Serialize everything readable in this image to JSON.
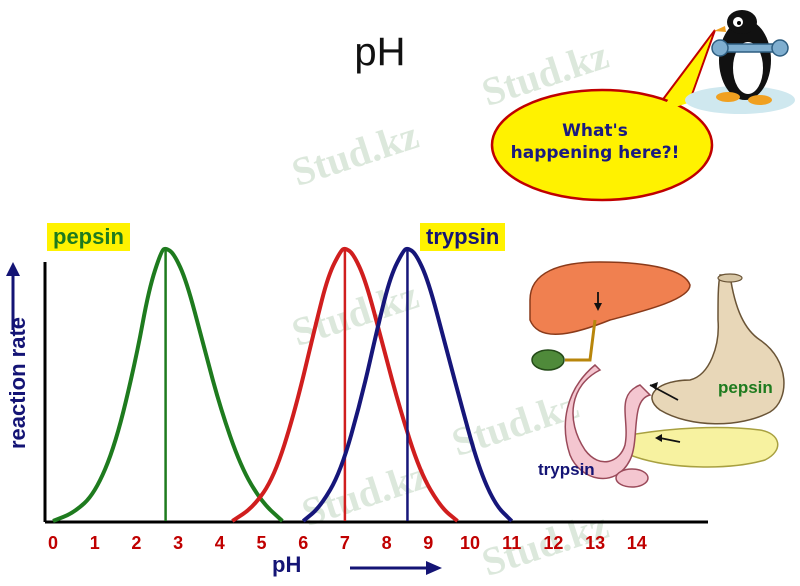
{
  "title": "pH",
  "speech_bubble": {
    "line1": "What's",
    "line2": "happening here?!"
  },
  "colors": {
    "pepsin": "#1e7b1e",
    "middle": "#d01e1e",
    "trypsin": "#16167a",
    "ticks": "#c00000",
    "highlight": "#fff200"
  },
  "watermark": "Stud.kz",
  "icons": [
    "penguin-mascot-icon",
    "wrench-icon",
    "digestive-system-illustration"
  ],
  "diagram": {
    "stomach_label": "pepsin",
    "pancreas_label": "trypsin"
  },
  "chart_data": {
    "type": "line",
    "title": "pH",
    "xlabel": "pH",
    "ylabel": "reaction rate",
    "xlim": [
      0,
      14
    ],
    "x_ticks": [
      "0",
      "1",
      "2",
      "3",
      "4",
      "5",
      "6",
      "7",
      "8",
      "9",
      "10",
      "11",
      "12",
      "13",
      "14"
    ],
    "grid": false,
    "series": [
      {
        "name": "pepsin",
        "peak_x": 2.7,
        "x": [
          0,
          0.5,
          1,
          1.5,
          2,
          2.3,
          2.6,
          2.7,
          2.9,
          3.2,
          3.6,
          4,
          4.5,
          5,
          5.5
        ],
        "y": [
          0,
          0.03,
          0.1,
          0.28,
          0.6,
          0.85,
          0.99,
          1.0,
          0.98,
          0.88,
          0.65,
          0.42,
          0.2,
          0.07,
          0
        ]
      },
      {
        "name": "",
        "peak_x": 7.0,
        "x": [
          4.3,
          4.8,
          5.3,
          5.8,
          6.3,
          6.6,
          6.9,
          7.0,
          7.2,
          7.5,
          7.9,
          8.3,
          8.8,
          9.3,
          9.7
        ],
        "y": [
          0,
          0.05,
          0.16,
          0.4,
          0.72,
          0.9,
          0.99,
          1.0,
          0.98,
          0.88,
          0.65,
          0.42,
          0.18,
          0.05,
          0
        ]
      },
      {
        "name": "trypsin",
        "peak_x": 8.5,
        "x": [
          6.0,
          6.4,
          6.9,
          7.4,
          7.8,
          8.1,
          8.4,
          8.5,
          8.7,
          9.0,
          9.4,
          9.8,
          10.2,
          10.6,
          11.0
        ],
        "y": [
          0,
          0.05,
          0.18,
          0.45,
          0.72,
          0.9,
          0.99,
          1.0,
          0.98,
          0.88,
          0.65,
          0.42,
          0.2,
          0.06,
          0
        ]
      }
    ]
  }
}
